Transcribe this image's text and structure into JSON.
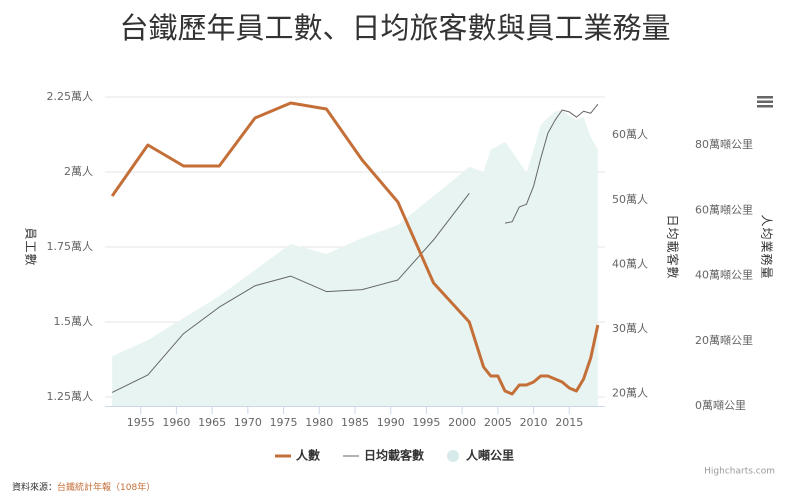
{
  "chart_data": {
    "type": "line",
    "title": "台鐵歷年員工數、日均旅客數與員工業務量",
    "xlim": [
      1950,
      2020
    ],
    "xticks": [
      1955,
      1960,
      1965,
      1970,
      1975,
      1980,
      1985,
      1990,
      1995,
      2000,
      2005,
      2010,
      2015
    ],
    "ylabel": "員工數",
    "ylim": [
      1.22,
      2.28
    ],
    "yticks": [
      {
        "value": 1.25,
        "label": "1.25萬人"
      },
      {
        "value": 1.5,
        "label": "1.5萬人"
      },
      {
        "value": 1.75,
        "label": "1.75萬人"
      },
      {
        "value": 2,
        "label": "2萬人"
      },
      {
        "value": 2.25,
        "label": "2.25萬人"
      }
    ],
    "y2label": "日均載客數",
    "y2lim": [
      18.1,
      67.3
    ],
    "y2ticks": [
      {
        "value": 20,
        "label": "20萬人"
      },
      {
        "value": 30,
        "label": "30萬人"
      },
      {
        "value": 40,
        "label": "40萬人"
      },
      {
        "value": 50,
        "label": "50萬人"
      },
      {
        "value": 60,
        "label": "60萬人"
      }
    ],
    "y3label": "人均業務量",
    "y3lim": [
      0,
      97.5
    ],
    "y3ticks": [
      {
        "value": 0,
        "label": "0萬噸公里"
      },
      {
        "value": 20,
        "label": "20萬噸公里"
      },
      {
        "value": 40,
        "label": "40萬噸公里"
      },
      {
        "value": 60,
        "label": "60萬噸公里"
      },
      {
        "value": 80,
        "label": "80萬噸公里"
      }
    ],
    "grid": true,
    "series": [
      {
        "name": "人噸公里",
        "type": "area",
        "axis": "y3",
        "color": "#e8f4f1",
        "legend_color": "#d6ebe9",
        "x": [
          1951,
          1956,
          1961,
          1966,
          1971,
          1976,
          1981,
          1986,
          1991,
          1996,
          2001,
          2003,
          2004,
          2006,
          2008,
          2009,
          2010,
          2011,
          2012,
          2013,
          2014,
          2015,
          2016,
          2017,
          2018,
          2019
        ],
        "values": [
          15.3,
          20.2,
          27,
          33.7,
          41.7,
          49.7,
          46.6,
          51.5,
          55.5,
          64.4,
          73.3,
          71.8,
          78.5,
          81,
          74.8,
          71.5,
          78.5,
          86.2,
          88.3,
          90.2,
          90.8,
          89,
          87.7,
          88.7,
          82.5,
          78.5
        ]
      },
      {
        "name": "日均載客數",
        "type": "line",
        "axis": "y2",
        "color": "#666666",
        "x": [
          1951,
          1956,
          1961,
          1966,
          1971,
          1976,
          1981,
          1986,
          1991,
          1996,
          2001,
          2002,
          2006,
          2007,
          2008,
          2009,
          2010,
          2011,
          2012,
          2013,
          2014,
          2015,
          2016,
          2017,
          2018,
          2019
        ],
        "values": [
          20.2,
          22.9,
          29.3,
          33.4,
          36.7,
          38.2,
          35.8,
          36.1,
          37.6,
          43.8,
          51.0,
          null,
          46.4,
          46.6,
          48.9,
          49.3,
          52.1,
          56.4,
          60.3,
          62.3,
          63.9,
          63.6,
          62.8,
          63.7,
          63.4,
          64.8
        ]
      },
      {
        "name": "人數",
        "type": "line",
        "axis": "y",
        "color": "#c46e38",
        "x": [
          1951,
          1956,
          1961,
          1966,
          1971,
          1976,
          1981,
          1986,
          1991,
          1996,
          2001,
          2003,
          2004,
          2005,
          2006,
          2007,
          2008,
          2009,
          2010,
          2011,
          2012,
          2013,
          2014,
          2015,
          2016,
          2017,
          2018,
          2019
        ],
        "values": [
          1.92,
          2.09,
          2.02,
          2.02,
          2.18,
          2.23,
          2.21,
          2.04,
          1.9,
          1.63,
          1.5,
          1.35,
          1.32,
          1.32,
          1.27,
          1.26,
          1.29,
          1.29,
          1.3,
          1.32,
          1.32,
          1.31,
          1.3,
          1.28,
          1.27,
          1.31,
          1.38,
          1.49
        ]
      }
    ],
    "source_label": "資料來源：",
    "source": "台鐵統計年報（108年）",
    "credits": "Highcharts.com"
  }
}
